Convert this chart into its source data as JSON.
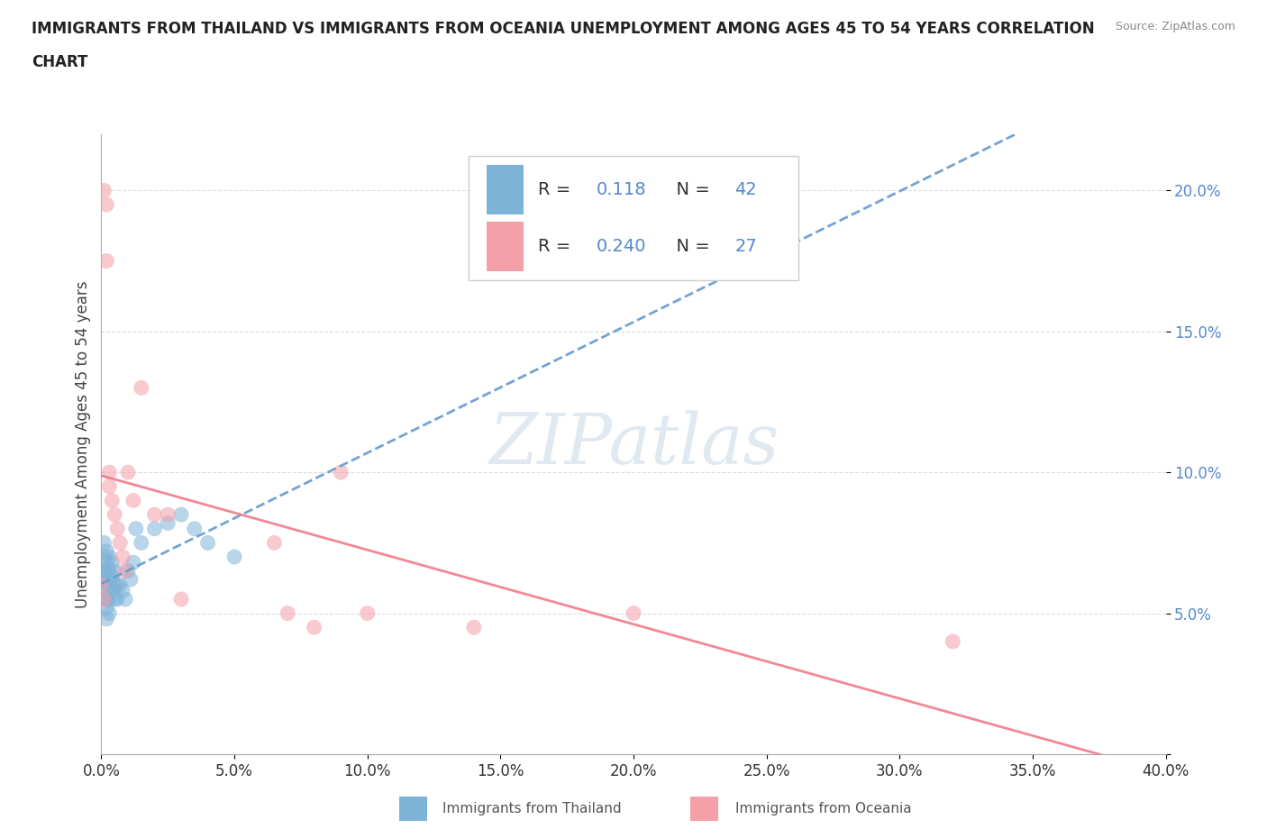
{
  "title_line1": "IMMIGRANTS FROM THAILAND VS IMMIGRANTS FROM OCEANIA UNEMPLOYMENT AMONG AGES 45 TO 54 YEARS CORRELATION",
  "title_line2": "CHART",
  "source": "Source: ZipAtlas.com",
  "ylabel": "Unemployment Among Ages 45 to 54 years",
  "xlim": [
    0.0,
    0.4
  ],
  "ylim": [
    0.0,
    0.22
  ],
  "thailand_color": "#7EB3D8",
  "oceania_color": "#F4A0A8",
  "thailand_trendline_color": "#6699CC",
  "oceania_trendline_color": "#F47A8A",
  "thailand_R": 0.118,
  "thailand_N": 42,
  "oceania_R": 0.24,
  "oceania_N": 27,
  "watermark": "ZIPatlas",
  "legend_R_N_color": "#5588CC",
  "ytick_color": "#5588CC",
  "thailand_x": [
    0.0,
    0.0,
    0.001,
    0.001,
    0.001,
    0.001,
    0.001,
    0.002,
    0.002,
    0.002,
    0.002,
    0.002,
    0.002,
    0.002,
    0.002,
    0.003,
    0.003,
    0.003,
    0.003,
    0.003,
    0.004,
    0.004,
    0.004,
    0.005,
    0.005,
    0.005,
    0.006,
    0.006,
    0.007,
    0.008,
    0.009,
    0.01,
    0.011,
    0.012,
    0.013,
    0.015,
    0.02,
    0.025,
    0.03,
    0.035,
    0.04,
    0.05
  ],
  "thailand_y": [
    0.065,
    0.06,
    0.075,
    0.07,
    0.065,
    0.06,
    0.055,
    0.072,
    0.068,
    0.065,
    0.062,
    0.058,
    0.055,
    0.052,
    0.048,
    0.07,
    0.065,
    0.06,
    0.055,
    0.05,
    0.068,
    0.063,
    0.058,
    0.065,
    0.06,
    0.055,
    0.06,
    0.055,
    0.06,
    0.058,
    0.055,
    0.065,
    0.062,
    0.068,
    0.08,
    0.075,
    0.08,
    0.082,
    0.085,
    0.08,
    0.075,
    0.07
  ],
  "oceania_x": [
    0.0,
    0.001,
    0.001,
    0.002,
    0.002,
    0.003,
    0.003,
    0.004,
    0.005,
    0.006,
    0.007,
    0.008,
    0.009,
    0.01,
    0.012,
    0.015,
    0.02,
    0.025,
    0.03,
    0.065,
    0.07,
    0.08,
    0.09,
    0.1,
    0.14,
    0.2,
    0.32
  ],
  "oceania_y": [
    0.06,
    0.055,
    0.2,
    0.195,
    0.175,
    0.1,
    0.095,
    0.09,
    0.085,
    0.08,
    0.075,
    0.07,
    0.065,
    0.1,
    0.09,
    0.13,
    0.085,
    0.085,
    0.055,
    0.075,
    0.05,
    0.045,
    0.1,
    0.05,
    0.045,
    0.05,
    0.04
  ],
  "xtick_vals": [
    0.0,
    0.05,
    0.1,
    0.15,
    0.2,
    0.25,
    0.3,
    0.35,
    0.4
  ],
  "ytick_vals": [
    0.0,
    0.05,
    0.1,
    0.15,
    0.2
  ]
}
